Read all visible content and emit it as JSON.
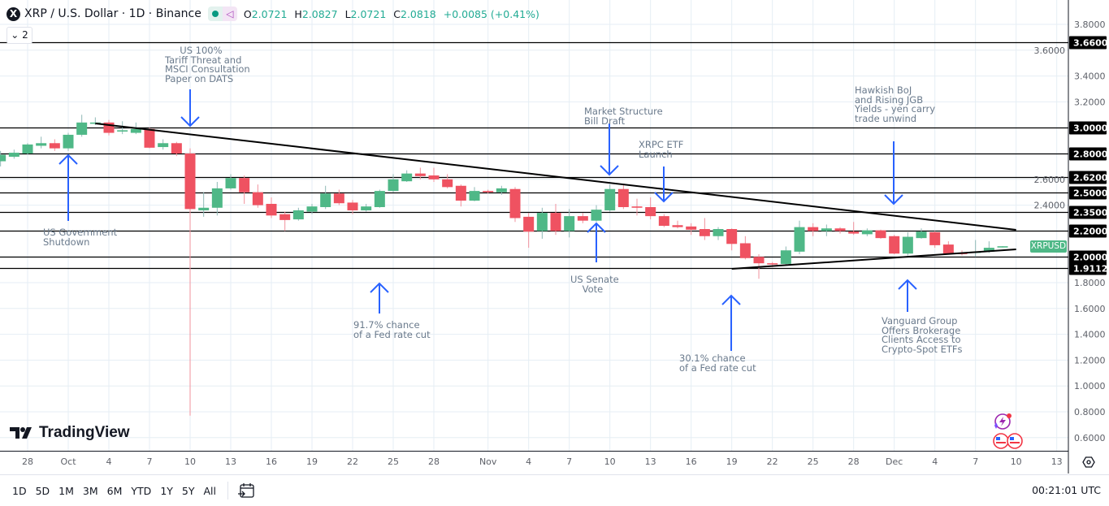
{
  "header": {
    "symbol_logo": "X",
    "title": "XRP / U.S. Dollar · 1D · Binance",
    "ohlc": {
      "o_label": "O",
      "o": "2.0721",
      "h_label": "H",
      "h": "2.0827",
      "l_label": "L",
      "l": "2.0721",
      "c_label": "C",
      "c": "2.0818",
      "change": "+0.0085 (+0.41%)"
    },
    "collapse_label": "2"
  },
  "colors": {
    "up": "#4fb887",
    "down": "#ef5261",
    "annotation_arrow": "#2962ff",
    "level_line": "#000000",
    "trendline": "#000000",
    "grid": "#e6eef4"
  },
  "chart_data": {
    "type": "candlestick",
    "symbol": "XRPUSD",
    "ylim": [
      0.6,
      3.8
    ],
    "y_ticks": [
      "3.8000",
      "3.6000",
      "3.4000",
      "3.2000",
      "3.0000",
      "2.8000",
      "2.6000",
      "2.4000",
      "2.2000",
      "2.0000",
      "1.8000",
      "1.6000",
      "1.4000",
      "1.2000",
      "1.0000",
      "0.8000",
      "0.6000"
    ],
    "x_ticks": [
      [
        "Sep 28",
        "28"
      ],
      [
        "Oct 1",
        "Oct"
      ],
      [
        "Oct 4",
        "4"
      ],
      [
        "Oct 7",
        "7"
      ],
      [
        "Oct 10",
        "10"
      ],
      [
        "Oct 13",
        "13"
      ],
      [
        "Oct 16",
        "16"
      ],
      [
        "Oct 19",
        "19"
      ],
      [
        "Oct 22",
        "22"
      ],
      [
        "Oct 25",
        "25"
      ],
      [
        "Oct 28",
        "28"
      ],
      [
        "Nov 1",
        "Nov"
      ],
      [
        "Nov 4",
        "4"
      ],
      [
        "Nov 7",
        "7"
      ],
      [
        "Nov 10",
        "10"
      ],
      [
        "Nov 13",
        "13"
      ],
      [
        "Nov 16",
        "16"
      ],
      [
        "Nov 19",
        "19"
      ],
      [
        "Nov 22",
        "22"
      ],
      [
        "Nov 25",
        "25"
      ],
      [
        "Nov 28",
        "28"
      ],
      [
        "Dec 1",
        "Dec"
      ],
      [
        "Dec 4",
        "4"
      ],
      [
        "Dec 7",
        "7"
      ],
      [
        "Dec 10",
        "10"
      ],
      [
        "Dec 13",
        "13"
      ]
    ],
    "grid": true,
    "levels": [
      "3.6600",
      "3.0000",
      "2.8000",
      "2.6200",
      "2.5000",
      "2.3500",
      "2.2000",
      "2.0000",
      "1.9112"
    ],
    "trendlines": [
      {
        "from": [
          "Oct 3",
          3.033
        ],
        "to": [
          "Dec 10",
          2.209
        ]
      },
      {
        "from": [
          "Nov 19",
          1.907
        ],
        "to": [
          "Dec 10",
          2.058
        ]
      }
    ],
    "candles_columns": [
      "date",
      "open",
      "high",
      "low",
      "close"
    ],
    "candles": [
      [
        "Sep 26",
        2.74,
        2.82,
        2.7,
        2.79
      ],
      [
        "Sep 27",
        2.775,
        2.83,
        2.76,
        2.806
      ],
      [
        "Sep 28",
        2.8,
        2.88,
        2.79,
        2.87
      ],
      [
        "Sep 29",
        2.86,
        2.93,
        2.84,
        2.88
      ],
      [
        "Sep 30",
        2.88,
        2.91,
        2.82,
        2.84
      ],
      [
        "Oct 1",
        2.84,
        2.96,
        2.82,
        2.945
      ],
      [
        "Oct 2",
        2.945,
        3.1,
        2.93,
        3.04
      ],
      [
        "Oct 3",
        3.03,
        3.08,
        3.02,
        3.04
      ],
      [
        "Oct 4",
        3.04,
        3.06,
        2.94,
        2.96
      ],
      [
        "Oct 5",
        2.97,
        3.05,
        2.95,
        2.98
      ],
      [
        "Oct 6",
        2.96,
        3.04,
        2.95,
        2.99
      ],
      [
        "Oct 7",
        2.99,
        3.0,
        2.84,
        2.845
      ],
      [
        "Oct 8",
        2.85,
        2.91,
        2.83,
        2.88
      ],
      [
        "Oct 9",
        2.88,
        2.89,
        2.78,
        2.8
      ],
      [
        "Oct 10",
        2.8,
        2.84,
        0.77,
        2.37
      ],
      [
        "Oct 11",
        2.36,
        2.5,
        2.31,
        2.38
      ],
      [
        "Oct 12",
        2.38,
        2.58,
        2.32,
        2.53
      ],
      [
        "Oct 13",
        2.53,
        2.64,
        2.52,
        2.61
      ],
      [
        "Oct 14",
        2.61,
        2.63,
        2.41,
        2.5
      ],
      [
        "Oct 15",
        2.5,
        2.56,
        2.38,
        2.4
      ],
      [
        "Oct 16",
        2.41,
        2.46,
        2.3,
        2.32
      ],
      [
        "Oct 17",
        2.33,
        2.35,
        2.2,
        2.285
      ],
      [
        "Oct 18",
        2.29,
        2.38,
        2.28,
        2.36
      ],
      [
        "Oct 19",
        2.35,
        2.41,
        2.33,
        2.39
      ],
      [
        "Oct 20",
        2.385,
        2.55,
        2.37,
        2.49
      ],
      [
        "Oct 21",
        2.49,
        2.52,
        2.4,
        2.415
      ],
      [
        "Oct 22",
        2.42,
        2.44,
        2.33,
        2.36
      ],
      [
        "Oct 23",
        2.36,
        2.41,
        2.35,
        2.39
      ],
      [
        "Oct 24",
        2.385,
        2.52,
        2.38,
        2.51
      ],
      [
        "Oct 25",
        2.51,
        2.64,
        2.5,
        2.6
      ],
      [
        "Oct 26",
        2.585,
        2.67,
        2.58,
        2.645
      ],
      [
        "Oct 27",
        2.645,
        2.69,
        2.6,
        2.625
      ],
      [
        "Oct 28",
        2.63,
        2.69,
        2.58,
        2.6
      ],
      [
        "Oct 29",
        2.6,
        2.64,
        2.53,
        2.54
      ],
      [
        "Oct 30",
        2.55,
        2.56,
        2.39,
        2.435
      ],
      [
        "Oct 31",
        2.435,
        2.54,
        2.43,
        2.51
      ],
      [
        "Nov 1",
        2.51,
        2.52,
        2.49,
        2.5
      ],
      [
        "Nov 2",
        2.5,
        2.55,
        2.48,
        2.53
      ],
      [
        "Nov 3",
        2.525,
        2.54,
        2.27,
        2.3
      ],
      [
        "Nov 4",
        2.31,
        2.34,
        2.07,
        2.195
      ],
      [
        "Nov 5",
        2.2,
        2.38,
        2.14,
        2.34
      ],
      [
        "Nov 6",
        2.34,
        2.41,
        2.17,
        2.2
      ],
      [
        "Nov 7",
        2.2,
        2.37,
        2.15,
        2.315
      ],
      [
        "Nov 8",
        2.315,
        2.34,
        2.26,
        2.28
      ],
      [
        "Nov 9",
        2.28,
        2.4,
        2.27,
        2.365
      ],
      [
        "Nov 10",
        2.36,
        2.56,
        2.35,
        2.525
      ],
      [
        "Nov 11",
        2.525,
        2.56,
        2.37,
        2.385
      ],
      [
        "Nov 12",
        2.39,
        2.45,
        2.32,
        2.38
      ],
      [
        "Nov 13",
        2.385,
        2.46,
        2.29,
        2.315
      ],
      [
        "Nov 14",
        2.315,
        2.33,
        2.23,
        2.24
      ],
      [
        "Nov 15",
        2.245,
        2.28,
        2.22,
        2.23
      ],
      [
        "Nov 16",
        2.235,
        2.26,
        2.17,
        2.21
      ],
      [
        "Nov 17",
        2.215,
        2.3,
        2.13,
        2.16
      ],
      [
        "Nov 18",
        2.16,
        2.23,
        2.13,
        2.215
      ],
      [
        "Nov 19",
        2.215,
        2.22,
        2.05,
        2.1
      ],
      [
        "Nov 20",
        2.105,
        2.16,
        1.98,
        1.99
      ],
      [
        "Nov 21",
        2.0,
        2.02,
        1.83,
        1.95
      ],
      [
        "Nov 22",
        1.95,
        1.96,
        1.92,
        1.945
      ],
      [
        "Nov 23",
        1.945,
        2.08,
        1.94,
        2.05
      ],
      [
        "Nov 24",
        2.04,
        2.28,
        2.02,
        2.23
      ],
      [
        "Nov 25",
        2.23,
        2.26,
        2.16,
        2.2
      ],
      [
        "Nov 26",
        2.2,
        2.25,
        2.16,
        2.22
      ],
      [
        "Nov 27",
        2.22,
        2.23,
        2.18,
        2.2
      ],
      [
        "Nov 28",
        2.195,
        2.27,
        2.17,
        2.18
      ],
      [
        "Nov 29",
        2.175,
        2.22,
        2.16,
        2.205
      ],
      [
        "Nov 30",
        2.205,
        2.21,
        2.14,
        2.145
      ],
      [
        "Dec 1",
        2.16,
        2.17,
        2.02,
        2.025
      ],
      [
        "Dec 2",
        2.025,
        2.19,
        2.01,
        2.155
      ],
      [
        "Dec 3",
        2.145,
        2.22,
        2.14,
        2.195
      ],
      [
        "Dec 4",
        2.19,
        2.2,
        2.07,
        2.09
      ],
      [
        "Dec 5",
        2.095,
        2.12,
        2.02,
        2.025
      ],
      [
        "Dec 6",
        2.03,
        2.05,
        2.01,
        2.025
      ],
      [
        "Dec 7",
        2.03,
        2.13,
        2.0,
        2.04
      ],
      [
        "Dec 8",
        2.04,
        2.12,
        2.03,
        2.07
      ],
      [
        "Dec 9",
        2.0721,
        2.0827,
        2.0721,
        2.0818
      ]
    ],
    "annotations": [
      "US Government\nShutdown",
      "     US 100%\nTariff Threat and\nMSCI Consultation\nPaper on DATS",
      "91.7% chance\nof a Fed rate cut",
      "Market Structure\nBill Draft",
      "XRPC ETF\nLaunch",
      "US Senate\n    Vote",
      "30.1% chance\nof a Fed rate cut",
      "Hawkish BoJ\nand Rising JGB\nYields - yen carry\ntrade unwind",
      "Vanguard Group\nOffers Brokerage\nClients Access to\nCrypto-Spot ETFs"
    ],
    "symbol_badge": "XRPUSD"
  },
  "logo": "TradingView",
  "bottom": {
    "ranges": [
      "1D",
      "5D",
      "1M",
      "3M",
      "6M",
      "YTD",
      "1Y",
      "5Y",
      "All"
    ],
    "clock": "00:21:01 UTC"
  },
  "icons": {
    "settings": "gear-icon",
    "date_range": "calendar-goto-icon",
    "alerts": "lightning-icon",
    "events": "us-flag-icon"
  }
}
